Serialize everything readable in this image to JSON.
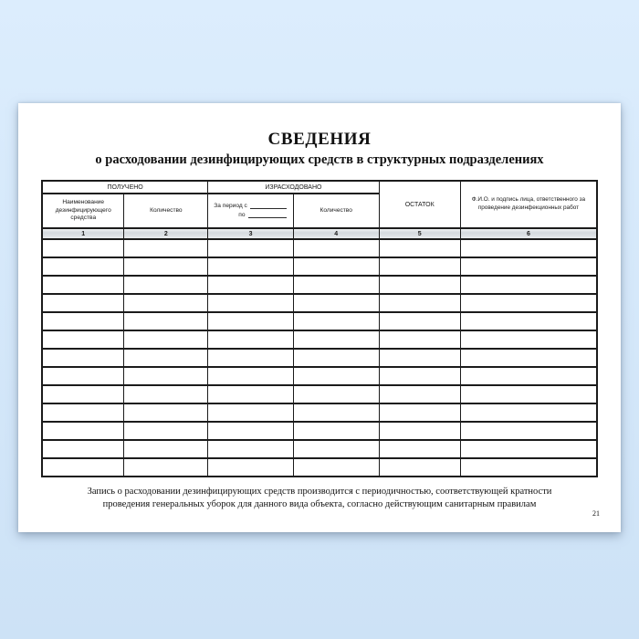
{
  "document": {
    "title": "СВЕДЕНИЯ",
    "subtitle": "о расходовании дезинфицирующих средств в структурных подразделениях",
    "footer_note_lines": [
      "Запись о расходовании дезинфицирующих средств производится с периодичностью, соответствующей кратности",
      "проведения генеральных уборок для данного вида объекта, согласно действующим санитарным правилам"
    ],
    "page_number": "21"
  },
  "table": {
    "group_headers": {
      "received": "ПОЛУЧЕНО",
      "used": "ИЗРАСХОДОВАНО",
      "remainder": "ОСТАТОК",
      "responsible": "Ф.И.О. и подпись лица, ответственного за проведение дезинфекционных работ"
    },
    "sub_headers": {
      "name": "Наименование дезинфицирующего средства",
      "quantity_received": "Количество",
      "period_from_label": "За период с",
      "period_to_label": "по",
      "quantity_used": "Количество"
    },
    "column_numbers": [
      "1",
      "2",
      "3",
      "4",
      "5",
      "6"
    ],
    "column_widths_percent": [
      14.8,
      15.1,
      15.4,
      15.4,
      14.7,
      24.6
    ],
    "empty_row_count": 13,
    "column_count": 6
  },
  "colors": {
    "background_top": "#dcedfd",
    "background_bottom": "#cde2f6",
    "paper": "#ffffff",
    "table_border": "#1b1b1b",
    "number_row_bg": "#d9dee2"
  }
}
